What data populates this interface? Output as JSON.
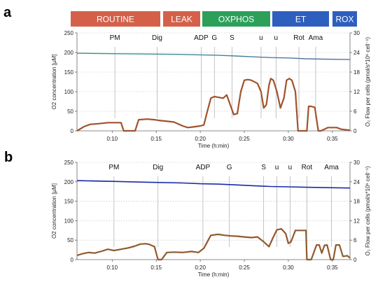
{
  "phases": [
    {
      "label": "ROUTINE",
      "color": "#d4604a"
    },
    {
      "label": "LEAK",
      "color": "#d4604a"
    },
    {
      "label": "OXPHOS",
      "color": "#2ca05a"
    },
    {
      "label": "ET",
      "color": "#2e5fbf"
    },
    {
      "label": "ROX",
      "color": "#2e5fbf"
    }
  ],
  "chart_data": [
    {
      "panel": "a",
      "type": "line",
      "xlabel": "Time (h:min)",
      "ylabel": "O2 concentration [µM]",
      "ylabel_right": "O₂ Flow per cells (pmol/s*10⁶ cell⁻¹)",
      "xlim": [
        6,
        37
      ],
      "ylim": [
        0,
        250
      ],
      "ylim_right": [
        0,
        30
      ],
      "x_ticks": [
        {
          "x": 10,
          "label": "0:10"
        },
        {
          "x": 15,
          "label": "0:15"
        },
        {
          "x": 20,
          "label": "0:20"
        },
        {
          "x": 25,
          "label": "0:25"
        },
        {
          "x": 30,
          "label": "0:30"
        },
        {
          "x": 35,
          "label": "0:35"
        }
      ],
      "y_ticks": [
        0,
        50,
        100,
        150,
        200,
        250
      ],
      "y_ticks_right": [
        0,
        6,
        12,
        18,
        24,
        30
      ],
      "grid": "horizontal dotted",
      "concentration_color": "#2a9a8a",
      "concentration_color2": "#5c6ea8",
      "flow_color": "#a0522d",
      "markers": [
        {
          "label": "PM",
          "x": 10.3
        },
        {
          "label": "Dig",
          "x": 15.1
        },
        {
          "label": "ADP",
          "x": 20.1
        },
        {
          "label": "G",
          "x": 21.6
        },
        {
          "label": "S",
          "x": 23.6
        },
        {
          "label": "u",
          "x": 26.9
        },
        {
          "label": "u",
          "x": 28.6
        },
        {
          "label": "Rot",
          "x": 31.2
        },
        {
          "label": "Ama",
          "x": 33.1
        }
      ],
      "concentration": {
        "x": [
          6,
          10,
          14,
          18,
          20,
          22,
          24,
          26,
          28,
          30,
          32,
          34,
          37
        ],
        "y": [
          198,
          197,
          196,
          195,
          194,
          193,
          191,
          189,
          187,
          186,
          184,
          183,
          182
        ]
      },
      "flow": {
        "x": [
          6,
          6.8,
          7.5,
          8.5,
          9.5,
          10,
          10.5,
          11,
          11.3,
          12,
          12.6,
          13,
          14,
          14.8,
          15.3,
          16,
          17,
          18,
          18.6,
          19.2,
          20,
          20.4,
          20.8,
          21.2,
          21.6,
          22,
          22.6,
          23,
          23.4,
          23.8,
          24.2,
          24.6,
          25,
          25.4,
          25.8,
          26.5,
          26.9,
          27.2,
          27.5,
          27.8,
          28,
          28.3,
          28.7,
          29.1,
          29.5,
          29.8,
          30.1,
          30.4,
          30.8,
          31.1,
          31.3,
          31.6,
          32.1,
          32.3,
          32.6,
          33,
          33.4,
          33.7,
          34.5,
          35.5,
          36,
          37
        ],
        "y": [
          0,
          1.3,
          2,
          2.2,
          2.5,
          2.5,
          2.5,
          2.5,
          0,
          0,
          0,
          3.4,
          3.6,
          3.4,
          3.2,
          3,
          2.7,
          1.5,
          1,
          1.2,
          1.5,
          1.8,
          6,
          10,
          10.5,
          10.3,
          10,
          11,
          8,
          5,
          5.3,
          12,
          15.5,
          15.7,
          15.5,
          14.5,
          12,
          7,
          8,
          14,
          16,
          15.5,
          12,
          7,
          10,
          15.5,
          16,
          15.5,
          12,
          0,
          0,
          0,
          0,
          7.5,
          7.5,
          7.2,
          0,
          0,
          1,
          1,
          0.5,
          0.2
        ]
      }
    },
    {
      "panel": "b",
      "type": "line",
      "xlabel": "Time (h:min)",
      "ylabel": "O2 concentration [µM]",
      "ylabel_right": "O₂ Flow per cells (pmol/s*10⁶ cell⁻¹)",
      "xlim": [
        6,
        37
      ],
      "ylim": [
        0,
        250
      ],
      "ylim_right": [
        0,
        30
      ],
      "x_ticks": [
        {
          "x": 10,
          "label": "0:10"
        },
        {
          "x": 15,
          "label": "0:15"
        },
        {
          "x": 20,
          "label": "0:20"
        },
        {
          "x": 25,
          "label": "0:25"
        },
        {
          "x": 30,
          "label": "0:30"
        },
        {
          "x": 35,
          "label": "0:35"
        }
      ],
      "y_ticks": [
        0,
        50,
        100,
        150,
        200,
        250
      ],
      "y_ticks_right": [
        0,
        6,
        12,
        18,
        24,
        30
      ],
      "grid": "horizontal dotted",
      "concentration_color": "#1a2aa8",
      "flow_color": "#a0522d",
      "flow_color2": "#2e8b3a",
      "markers": [
        {
          "label": "PM",
          "x": 10.2
        },
        {
          "label": "Dig",
          "x": 15.2
        },
        {
          "label": "ADP",
          "x": 20.3
        },
        {
          "label": "G",
          "x": 23.3
        },
        {
          "label": "S",
          "x": 27.2
        },
        {
          "label": "u",
          "x": 28.7
        },
        {
          "label": "u",
          "x": 30.2
        },
        {
          "label": "Rot",
          "x": 32.1
        },
        {
          "label": "Ama",
          "x": 34.9
        }
      ],
      "concentration": {
        "x": [
          6,
          10,
          14,
          18,
          20,
          22,
          24,
          26,
          28,
          30,
          32,
          34,
          37
        ],
        "y": [
          203,
          201,
          199,
          197,
          195,
          194,
          192,
          190,
          188,
          187,
          186,
          185,
          184
        ]
      },
      "flow": {
        "x": [
          6,
          6.6,
          7.3,
          8,
          8.8,
          9.5,
          10.2,
          11,
          11.8,
          12.5,
          13.2,
          13.8,
          14.2,
          14.8,
          15.2,
          15.6,
          16.2,
          17,
          18,
          19,
          19.8,
          20.4,
          21.2,
          22,
          22.8,
          23.5,
          24.2,
          25,
          25.8,
          26.5,
          27.2,
          27.8,
          28.3,
          28.7,
          29.2,
          29.7,
          30,
          30.3,
          30.8,
          31.5,
          32,
          32.1,
          32.6,
          33.2,
          33.5,
          33.8,
          34.1,
          34.4,
          34.8,
          35.1,
          35.4,
          35.8,
          36.2,
          36.7,
          37
        ],
        "y": [
          1.3,
          1.8,
          2.2,
          2,
          2.6,
          3.2,
          2.8,
          3.2,
          3.6,
          4.1,
          4.8,
          4.9,
          4.7,
          4,
          0,
          0,
          2.2,
          2.3,
          2.2,
          2.5,
          2.2,
          3.5,
          7.5,
          7.8,
          7.5,
          7.3,
          7.2,
          7,
          6.8,
          7,
          5.5,
          4,
          7,
          9.2,
          9.5,
          8,
          5,
          5.5,
          9,
          9,
          9,
          0,
          0,
          4.5,
          4.5,
          2,
          4.4,
          4.5,
          0,
          0,
          4.5,
          4.5,
          1,
          1.2,
          0.5
        ]
      }
    }
  ]
}
